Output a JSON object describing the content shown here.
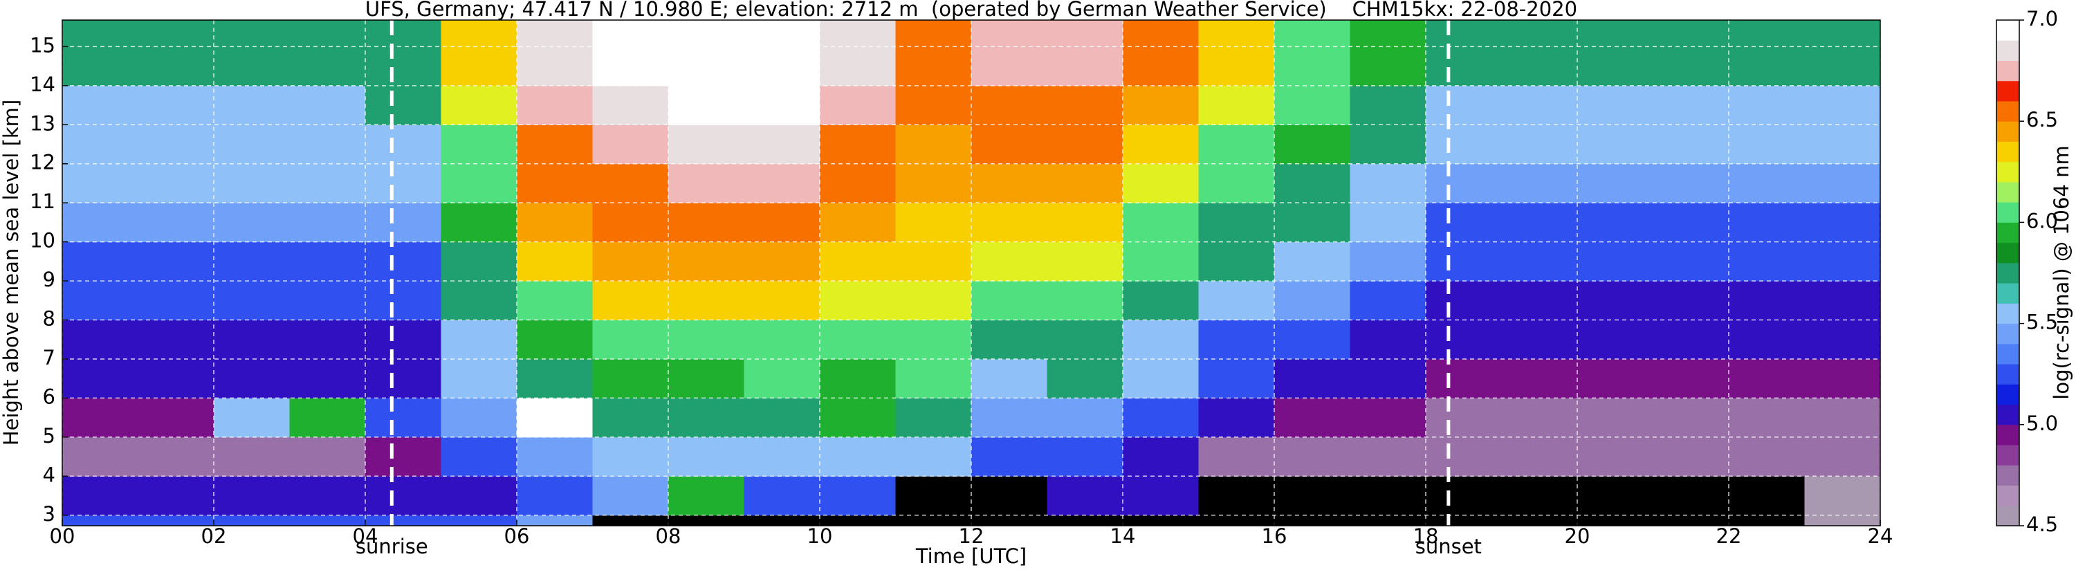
{
  "chart_data": {
    "type": "heatmap",
    "title": "UFS, Germany; 47.417 N / 10.980 E; elevation: 2712 m  (operated by German Weather Service)    CHM15kx: 22-08-2020",
    "x_label": "Time [UTC]",
    "y_label": "Height above mean sea level [km]",
    "colorbar_label": "log(rc-signal) @ 1064 nm",
    "xlim": [
      0,
      24
    ],
    "ylim": [
      2.73,
      15.68
    ],
    "xticks": [
      {
        "value": 0,
        "label": "00"
      },
      {
        "value": 2,
        "label": "02"
      },
      {
        "value": 4,
        "label": "04"
      },
      {
        "value": 6,
        "label": "06"
      },
      {
        "value": 8,
        "label": "08"
      },
      10,
      12,
      14,
      16,
      18,
      20,
      22,
      24
    ],
    "yticks": [
      3,
      4,
      5,
      6,
      7,
      8,
      9,
      10,
      11,
      12,
      13,
      14,
      15
    ],
    "grid": true,
    "grid_color": "#ffffff",
    "under_color": "#000000",
    "clim": [
      4.5,
      7.0
    ],
    "cticks": [
      4.5,
      {
        "value": 5,
        "label": "5.0"
      },
      5.5,
      {
        "value": 6,
        "label": "6.0"
      },
      6.5,
      {
        "value": 7,
        "label": "7.0"
      }
    ],
    "colormap": [
      "#a898b0",
      "#b090b8",
      "#9a70a8",
      "#8a3c98",
      "#7a1088",
      "#3010c0",
      "#1020e0",
      "#3050f0",
      "#5080f8",
      "#70a0f8",
      "#90c0f8",
      "#40c0b0",
      "#20a070",
      "#109020",
      "#20b030",
      "#50e080",
      "#a0f060",
      "#e0f020",
      "#f8d000",
      "#f8a000",
      "#f87000",
      "#f02000",
      "#f0b8b8",
      "#e8e0e0",
      "#ffffff"
    ],
    "xbins": [
      0,
      1,
      2,
      3,
      4,
      5,
      6,
      7,
      8,
      9,
      10,
      11,
      12,
      13,
      14,
      15,
      16,
      17,
      18,
      19,
      20,
      21,
      22,
      23,
      24
    ],
    "ybins": [
      2.73,
      3,
      4,
      5,
      6,
      7,
      8,
      9,
      10,
      11,
      12,
      13,
      14,
      15,
      15.68
    ],
    "values": [
      [
        5.2,
        5.2,
        5.2,
        5.2,
        5.2,
        5.3,
        5.4,
        4.3,
        4.3,
        4.3,
        4.3,
        4.3,
        4.3,
        4.3,
        4.3,
        4.3,
        4.3,
        4.3,
        4.3,
        4.3,
        4.4,
        4.3,
        4.4,
        4.6
      ],
      [
        5.0,
        5.0,
        5.0,
        5.0,
        5.0,
        5.1,
        5.3,
        5.4,
        5.9,
        5.3,
        5.2,
        4.3,
        4.3,
        5.1,
        5.0,
        4.4,
        4.4,
        4.4,
        4.3,
        4.3,
        4.3,
        4.3,
        4.3,
        4.6
      ],
      [
        4.8,
        4.8,
        4.8,
        4.8,
        4.9,
        5.2,
        5.4,
        5.5,
        5.6,
        5.5,
        5.6,
        5.6,
        5.2,
        5.2,
        5.0,
        4.8,
        4.7,
        4.7,
        4.7,
        4.7,
        4.7,
        4.7,
        4.7,
        4.7
      ],
      [
        4.9,
        4.9,
        5.6,
        5.9,
        5.3,
        5.4,
        6.9,
        5.7,
        5.8,
        5.8,
        5.9,
        5.8,
        5.4,
        5.4,
        5.3,
        5.0,
        4.9,
        4.9,
        4.8,
        4.8,
        4.8,
        4.8,
        4.8,
        4.8
      ],
      [
        5.0,
        5.0,
        5.0,
        5.0,
        5.0,
        5.5,
        5.7,
        5.9,
        5.9,
        6.0,
        5.9,
        6.0,
        5.6,
        5.7,
        5.5,
        5.2,
        5.1,
        5.0,
        4.9,
        4.9,
        4.9,
        4.9,
        4.9,
        4.9
      ],
      [
        5.1,
        5.1,
        5.1,
        5.1,
        5.1,
        5.6,
        5.9,
        6.1,
        6.1,
        6.1,
        6.1,
        6.1,
        5.8,
        5.8,
        5.6,
        5.3,
        5.2,
        5.1,
        5.0,
        5.0,
        5.0,
        5.0,
        5.0,
        5.0
      ],
      [
        5.2,
        5.2,
        5.2,
        5.2,
        5.2,
        5.7,
        6.1,
        6.3,
        6.3,
        6.3,
        6.2,
        6.2,
        6.0,
        6.0,
        5.8,
        5.5,
        5.4,
        5.2,
        5.1,
        5.1,
        5.1,
        5.1,
        5.1,
        5.1
      ],
      [
        5.3,
        5.3,
        5.3,
        5.3,
        5.3,
        5.8,
        6.3,
        6.4,
        6.4,
        6.4,
        6.3,
        6.3,
        6.2,
        6.2,
        6.0,
        5.7,
        5.6,
        5.4,
        5.2,
        5.2,
        5.2,
        5.2,
        5.2,
        5.2
      ],
      [
        5.4,
        5.4,
        5.4,
        5.4,
        5.4,
        5.9,
        6.4,
        6.5,
        6.5,
        6.5,
        6.4,
        6.3,
        6.3,
        6.3,
        6.1,
        5.8,
        5.7,
        5.5,
        5.3,
        5.3,
        5.3,
        5.3,
        5.3,
        5.3
      ],
      [
        5.5,
        5.5,
        5.5,
        5.5,
        5.5,
        6.0,
        6.5,
        6.6,
        6.7,
        6.7,
        6.5,
        6.4,
        6.4,
        6.4,
        6.2,
        6.0,
        5.8,
        5.6,
        5.4,
        5.4,
        5.4,
        5.4,
        5.4,
        5.4
      ],
      [
        5.5,
        5.5,
        5.5,
        5.5,
        5.6,
        6.1,
        6.6,
        6.7,
        6.8,
        6.8,
        6.6,
        6.4,
        6.5,
        6.5,
        6.3,
        6.1,
        5.9,
        5.7,
        5.5,
        5.5,
        5.5,
        5.5,
        5.5,
        5.5
      ],
      [
        5.6,
        5.6,
        5.6,
        5.6,
        5.7,
        6.2,
        6.7,
        6.8,
        6.9,
        6.9,
        6.7,
        6.5,
        6.6,
        6.6,
        6.4,
        6.2,
        6.0,
        5.8,
        5.6,
        5.6,
        5.6,
        5.6,
        5.6,
        5.6
      ],
      [
        5.7,
        5.7,
        5.7,
        5.7,
        5.8,
        6.3,
        6.8,
        6.9,
        6.95,
        6.95,
        6.8,
        6.5,
        6.7,
        6.7,
        6.5,
        6.3,
        6.1,
        5.9,
        5.7,
        5.7,
        5.7,
        5.7,
        5.7,
        5.7
      ],
      [
        5.7,
        5.7,
        5.7,
        5.7,
        5.8,
        6.3,
        6.8,
        6.9,
        6.95,
        6.95,
        6.8,
        6.5,
        6.7,
        6.7,
        6.5,
        6.3,
        6.1,
        5.9,
        5.7,
        5.7,
        5.7,
        5.7,
        5.7,
        5.7
      ]
    ],
    "annotations": [
      {
        "text": "sunrise",
        "x": 4.35
      },
      {
        "text": "sunset",
        "x": 18.3
      }
    ]
  }
}
